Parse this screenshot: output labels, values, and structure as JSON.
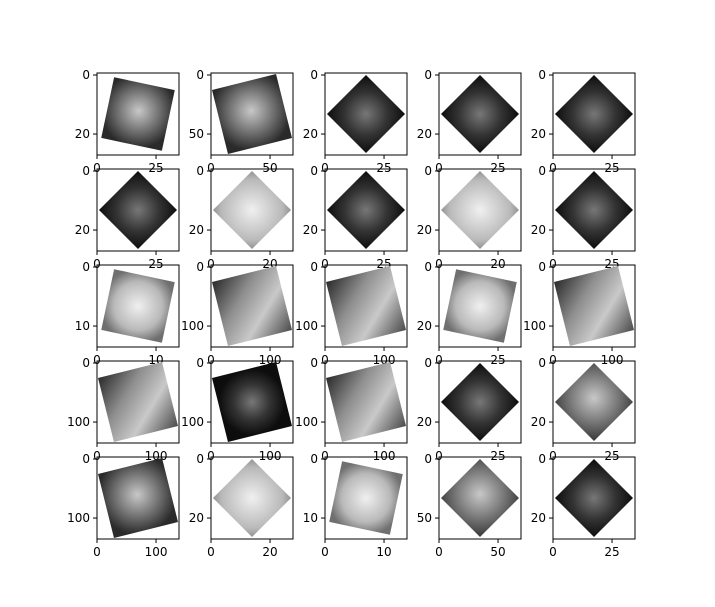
{
  "figure": {
    "background": "#ffffff",
    "colormap": "gray"
  },
  "chart_data": [
    {
      "type": "image",
      "content": "rotated blurry face crop",
      "xticks": [
        "0",
        "25"
      ],
      "yticks": [
        "0",
        "20"
      ],
      "shape": "tilted-square",
      "tone": "mid",
      "grid": false
    },
    {
      "type": "image",
      "content": "rotated face crop",
      "xticks": [
        "0",
        "50"
      ],
      "yticks": [
        "0",
        "50"
      ],
      "shape": "tilted-rect",
      "tone": "mid",
      "grid": false
    },
    {
      "type": "image",
      "content": "diamond face crop",
      "xticks": [
        "0",
        "25"
      ],
      "yticks": [
        "0",
        "20"
      ],
      "shape": "diamond",
      "tone": "dark",
      "grid": false
    },
    {
      "type": "image",
      "content": "diamond face crop",
      "xticks": [
        "0",
        "25"
      ],
      "yticks": [
        "0",
        "20"
      ],
      "shape": "diamond",
      "tone": "dark",
      "grid": false
    },
    {
      "type": "image",
      "content": "diamond face crop",
      "xticks": [
        "0",
        "25"
      ],
      "yticks": [
        "0",
        "20"
      ],
      "shape": "diamond",
      "tone": "dark",
      "grid": false
    },
    {
      "type": "image",
      "content": "diamond face crop",
      "xticks": [
        "0",
        "25"
      ],
      "yticks": [
        "0",
        "20"
      ],
      "shape": "diamond",
      "tone": "dark",
      "grid": false
    },
    {
      "type": "image",
      "content": "diamond light crop",
      "xticks": [
        "0",
        "20"
      ],
      "yticks": [
        "0",
        "20"
      ],
      "shape": "diamond",
      "tone": "light",
      "grid": false
    },
    {
      "type": "image",
      "content": "diamond face crop",
      "xticks": [
        "0",
        "25"
      ],
      "yticks": [
        "0",
        "20"
      ],
      "shape": "diamond",
      "tone": "dark",
      "grid": false
    },
    {
      "type": "image",
      "content": "diamond light crop",
      "xticks": [
        "0",
        "20"
      ],
      "yticks": [
        "0",
        "20"
      ],
      "shape": "diamond",
      "tone": "light",
      "grid": false
    },
    {
      "type": "image",
      "content": "diamond face crop",
      "xticks": [
        "0",
        "25"
      ],
      "yticks": [
        "0",
        "20"
      ],
      "shape": "diamond",
      "tone": "dark",
      "grid": false
    },
    {
      "type": "image",
      "content": "light pixelated crop",
      "xticks": [
        "0",
        "10"
      ],
      "yticks": [
        "0",
        "10"
      ],
      "shape": "tilted-square",
      "tone": "light",
      "grid": false
    },
    {
      "type": "image",
      "content": "woman face portrait",
      "xticks": [
        "0",
        "100"
      ],
      "yticks": [
        "0",
        "100"
      ],
      "shape": "tilted-rect",
      "tone": "face",
      "grid": false
    },
    {
      "type": "image",
      "content": "woman face portrait",
      "xticks": [
        "0",
        "100"
      ],
      "yticks": [
        "0",
        "100"
      ],
      "shape": "tilted-rect",
      "tone": "face",
      "grid": false
    },
    {
      "type": "image",
      "content": "light pixelated crop",
      "xticks": [
        "0",
        "25"
      ],
      "yticks": [
        "0",
        "20"
      ],
      "shape": "tilted-square",
      "tone": "light",
      "grid": false
    },
    {
      "type": "image",
      "content": "woman face portrait",
      "xticks": [
        "0",
        "100"
      ],
      "yticks": [
        "0",
        "100"
      ],
      "shape": "tilted-rect",
      "tone": "face",
      "grid": false
    },
    {
      "type": "image",
      "content": "woman face portrait",
      "xticks": [
        "0",
        "100"
      ],
      "yticks": [
        "0",
        "100"
      ],
      "shape": "tilted-rect",
      "tone": "face",
      "grid": false
    },
    {
      "type": "image",
      "content": "hand crop",
      "xticks": [
        "0",
        "100"
      ],
      "yticks": [
        "0",
        "100"
      ],
      "shape": "tilted-rect",
      "tone": "dark",
      "grid": false
    },
    {
      "type": "image",
      "content": "woman face portrait",
      "xticks": [
        "0",
        "100"
      ],
      "yticks": [
        "0",
        "100"
      ],
      "shape": "tilted-rect",
      "tone": "face",
      "grid": false
    },
    {
      "type": "image",
      "content": "dark diamond crop",
      "xticks": [
        "0",
        "25"
      ],
      "yticks": [
        "0",
        "20"
      ],
      "shape": "diamond",
      "tone": "dark",
      "grid": false
    },
    {
      "type": "image",
      "content": "striped diamond crop",
      "xticks": [
        "0",
        "25"
      ],
      "yticks": [
        "0",
        "20"
      ],
      "shape": "diamond",
      "tone": "mid",
      "grid": false
    },
    {
      "type": "image",
      "content": "doorway photo",
      "xticks": [
        "0",
        "100"
      ],
      "yticks": [
        "0",
        "100"
      ],
      "shape": "tilted-rect",
      "tone": "mid",
      "grid": false
    },
    {
      "type": "image",
      "content": "diamond light crop",
      "xticks": [
        "0",
        "20"
      ],
      "yticks": [
        "0",
        "20"
      ],
      "shape": "diamond",
      "tone": "light",
      "grid": false
    },
    {
      "type": "image",
      "content": "light pixelated crop",
      "xticks": [
        "0",
        "10"
      ],
      "yticks": [
        "0",
        "10"
      ],
      "shape": "tilted-square",
      "tone": "light",
      "grid": false
    },
    {
      "type": "image",
      "content": "texture diamond crop",
      "xticks": [
        "0",
        "50"
      ],
      "yticks": [
        "0",
        "50"
      ],
      "shape": "diamond",
      "tone": "mid",
      "grid": false
    },
    {
      "type": "image",
      "content": "diamond face crop",
      "xticks": [
        "0",
        "25"
      ],
      "yticks": [
        "0",
        "20"
      ],
      "shape": "diamond",
      "tone": "dark",
      "grid": false
    }
  ]
}
